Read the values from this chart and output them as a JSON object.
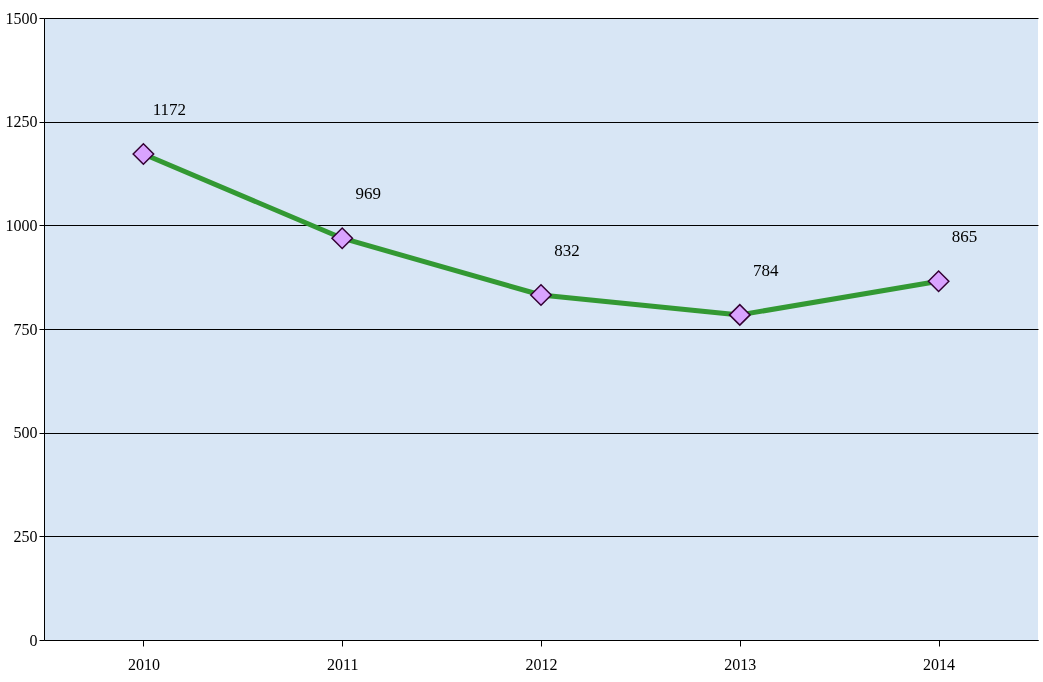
{
  "chart_data": {
    "type": "line",
    "categories": [
      "2010",
      "2011",
      "2012",
      "2013",
      "2014"
    ],
    "series": [
      {
        "color": "#339933",
        "values": [
          1172,
          969,
          832,
          784,
          865
        ]
      }
    ],
    "ylim": [
      0,
      1500
    ],
    "yticks": [
      0,
      250,
      500,
      750,
      1000,
      1250,
      1500
    ],
    "grid": "y",
    "marker": "diamond",
    "data_labels": true,
    "legend": false
  }
}
